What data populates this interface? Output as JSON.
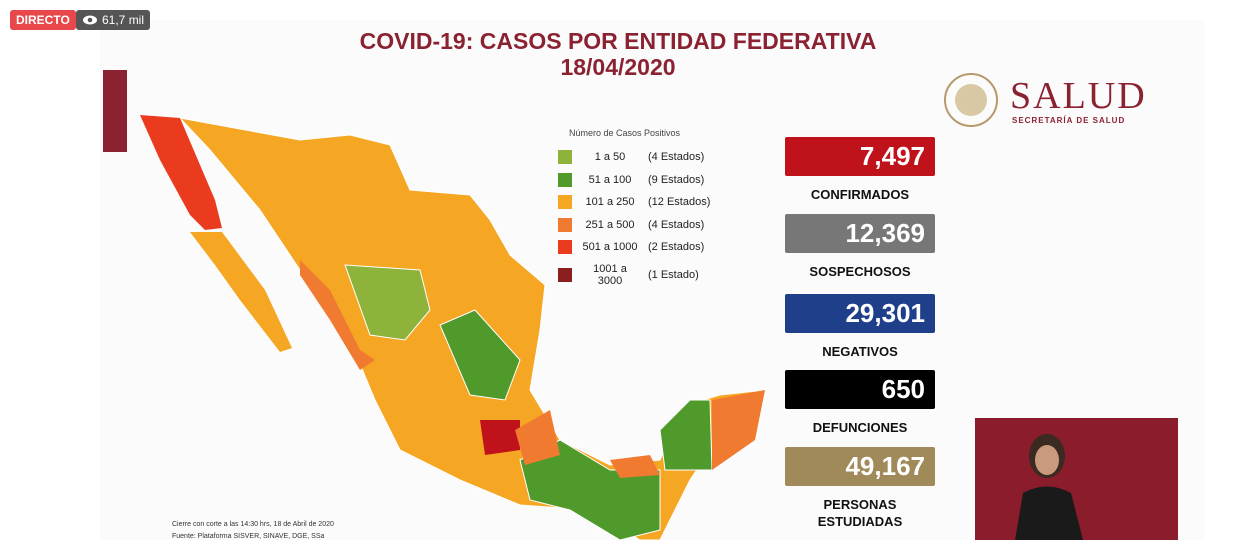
{
  "stream": {
    "live": "DIRECTO",
    "views": "61,7 mil"
  },
  "slide": {
    "title": "COVID-19: CASOS POR ENTIDAD FEDERATIVA",
    "date": "18/04/2020",
    "notes": [
      "Cierre con corte a las 14:30 hrs, 18 de Abril de 2020",
      "Fuente: Plataforma SISVER, SINAVE, DGE, SSa"
    ]
  },
  "legend": {
    "title": "Número de Casos Positivos",
    "items": [
      {
        "label": "1 a 50",
        "count": "(4 Estados)",
        "color": "#8db33a"
      },
      {
        "label": "51 a 100",
        "count": "(9 Estados)",
        "color": "#4f9a2a"
      },
      {
        "label": "101 a 250",
        "count": "(12 Estados)",
        "color": "#f5a623"
      },
      {
        "label": "251 a 500",
        "count": "(4 Estados)",
        "color": "#f07a30"
      },
      {
        "label": "501 a 1000",
        "count": "(2 Estados)",
        "color": "#ea3b1e"
      },
      {
        "label": "1001 a 3000",
        "count": "(1 Estado)",
        "color": "#8b1e1e"
      }
    ]
  },
  "stats": [
    {
      "value": "7,497",
      "label": "CONFIRMADOS",
      "color": "#c0121b"
    },
    {
      "value": "12,369",
      "label": "SOSPECHOSOS",
      "color": "#777777"
    },
    {
      "value": "29,301",
      "label": "NEGATIVOS",
      "color": "#1f3f8a"
    },
    {
      "value": "650",
      "label": "DEFUNCIONES",
      "color": "#000000"
    },
    {
      "value": "49,167",
      "label": "PERSONAS ESTUDIADAS",
      "color": "#a08a5a"
    }
  ],
  "logo": {
    "name": "SALUD",
    "subtitle": "SECRETARÍA DE SALUD"
  }
}
